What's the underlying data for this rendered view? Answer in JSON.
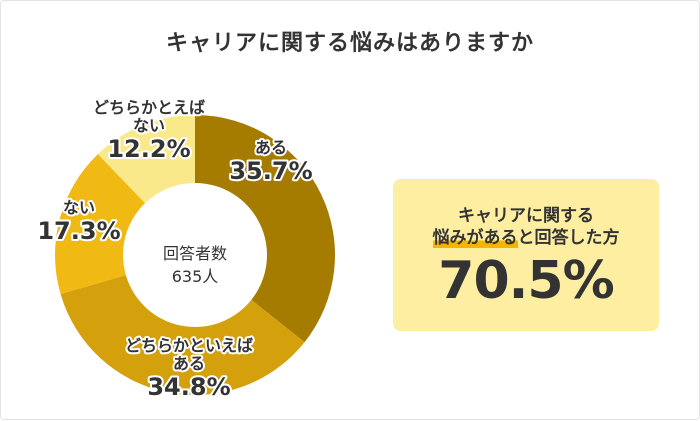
{
  "title": "キャリアに関する悩みはありますか",
  "chart_data": {
    "type": "pie",
    "donut": true,
    "total_label": "回答者数",
    "total_value": "635人",
    "slices": [
      {
        "label": [
          "ある"
        ],
        "value": 35.7,
        "value_text": "35.7%",
        "color": "#a67c00"
      },
      {
        "label": [
          "どちらかといえば",
          "ある"
        ],
        "value": 34.8,
        "value_text": "34.8%",
        "color": "#d4a00c"
      },
      {
        "label": [
          "ない"
        ],
        "value": 17.3,
        "value_text": "17.3%",
        "color": "#f0b914"
      },
      {
        "label": [
          "どちらかとえば",
          "ない"
        ],
        "value": 12.2,
        "value_text": "12.2%",
        "color": "#f9e98a"
      }
    ]
  },
  "summary": {
    "line1": "キャリアに関する",
    "line2_highlight": "悩みがある",
    "line2_rest": "と回答した方",
    "value": "70.5%",
    "background": "#fdeea2",
    "highlight_color": "#f5b400"
  }
}
